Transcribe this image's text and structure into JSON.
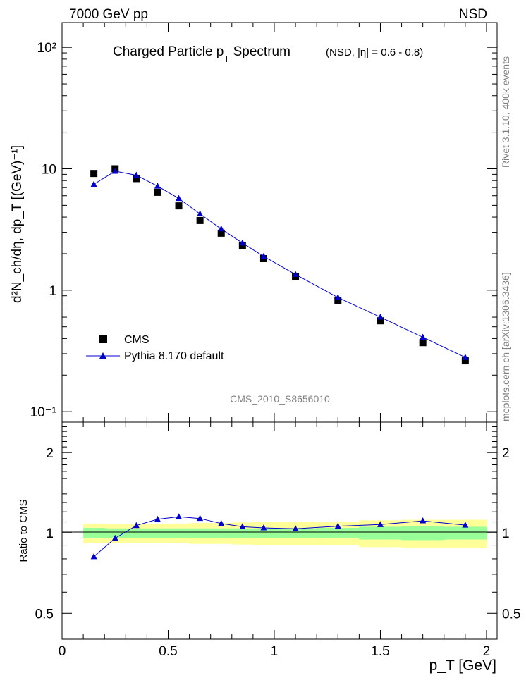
{
  "header": {
    "left": "7000 GeV pp",
    "right": "NSD"
  },
  "side_labels": {
    "rivet": "Rivet 3.1.10,  400k events",
    "mcplots": "mcplots.cern.ch [arXiv:1306.3436]"
  },
  "colors": {
    "data": "#000000",
    "mc": "#0000cc",
    "band_inner": "#99ff99",
    "band_outer": "#ffff99",
    "watermark": "#808080"
  },
  "main_plot": {
    "title_main": "Charged Particle p",
    "title_sub": "T",
    "title_rest": " Spectrum",
    "title_cond": "(NSD, |η| = 0.6 - 0.8)",
    "ylabel": "d²N_ch/dη, dp_T [(GeV)⁻¹]",
    "ytick_labels": [
      "10⁻¹",
      "1",
      "10",
      "10²"
    ],
    "watermark": "CMS_2010_S8656010",
    "legend": [
      {
        "label": "CMS",
        "marker": "square",
        "color": "#000000"
      },
      {
        "label": "Pythia 8.170 default",
        "marker": "triangle-line",
        "color": "#0000cc"
      }
    ]
  },
  "ratio_plot": {
    "ylabel": "Ratio to CMS",
    "ytick_labels": [
      "0.5",
      "1",
      "2"
    ],
    "xlabel": "p_T [GeV]",
    "xtick_labels": [
      "0",
      "0.5",
      "1",
      "1.5",
      "2"
    ]
  },
  "chart_data": [
    {
      "type": "scatter",
      "name": "spectrum",
      "title": "Charged Particle pT Spectrum (NSD, |η| = 0.6 - 0.8)",
      "xlabel": "pT [GeV]",
      "ylabel": "d2Nch/dη, dpT [(GeV)-1]",
      "yscale": "log",
      "xlim": [
        0,
        2.05
      ],
      "ylim": [
        0.082,
        160
      ],
      "x": [
        0.15,
        0.25,
        0.35,
        0.45,
        0.55,
        0.65,
        0.75,
        0.85,
        0.95,
        1.1,
        1.3,
        1.5,
        1.7,
        1.9
      ],
      "series": [
        {
          "name": "CMS",
          "values": [
            9.15,
            10.0,
            8.3,
            6.4,
            4.95,
            3.75,
            2.95,
            2.32,
            1.82,
            1.3,
            0.82,
            0.56,
            0.37,
            0.262
          ]
        },
        {
          "name": "Pythia 8.170 default",
          "values": [
            7.45,
            9.55,
            8.85,
            7.2,
            5.7,
            4.25,
            3.2,
            2.45,
            1.9,
            1.35,
            0.87,
            0.6,
            0.41,
            0.28
          ]
        }
      ]
    },
    {
      "type": "line",
      "name": "ratio",
      "xlabel": "pT [GeV]",
      "ylabel": "Ratio to CMS",
      "yscale": "log",
      "xlim": [
        0,
        2.05
      ],
      "ylim": [
        0.4,
        2.6
      ],
      "x": [
        0.15,
        0.25,
        0.35,
        0.45,
        0.55,
        0.65,
        0.75,
        0.85,
        0.95,
        1.1,
        1.3,
        1.5,
        1.7,
        1.9
      ],
      "series": [
        {
          "name": "Pythia 8.170 default / CMS",
          "values": [
            0.815,
            0.955,
            1.066,
            1.125,
            1.15,
            1.133,
            1.085,
            1.055,
            1.045,
            1.037,
            1.06,
            1.075,
            1.11,
            1.07
          ]
        }
      ],
      "bands": {
        "edges": [
          0.1,
          0.2,
          0.3,
          0.4,
          0.5,
          0.6,
          0.7,
          0.8,
          0.9,
          1.0,
          1.2,
          1.4,
          1.6,
          1.8,
          2.0
        ],
        "inner_half_width": [
          0.045,
          0.04,
          0.04,
          0.04,
          0.04,
          0.04,
          0.04,
          0.04,
          0.04,
          0.04,
          0.045,
          0.055,
          0.06,
          0.055
        ],
        "outer_half_width": [
          0.085,
          0.08,
          0.08,
          0.08,
          0.085,
          0.09,
          0.09,
          0.095,
          0.1,
          0.1,
          0.1,
          0.115,
          0.12,
          0.12
        ]
      }
    }
  ]
}
